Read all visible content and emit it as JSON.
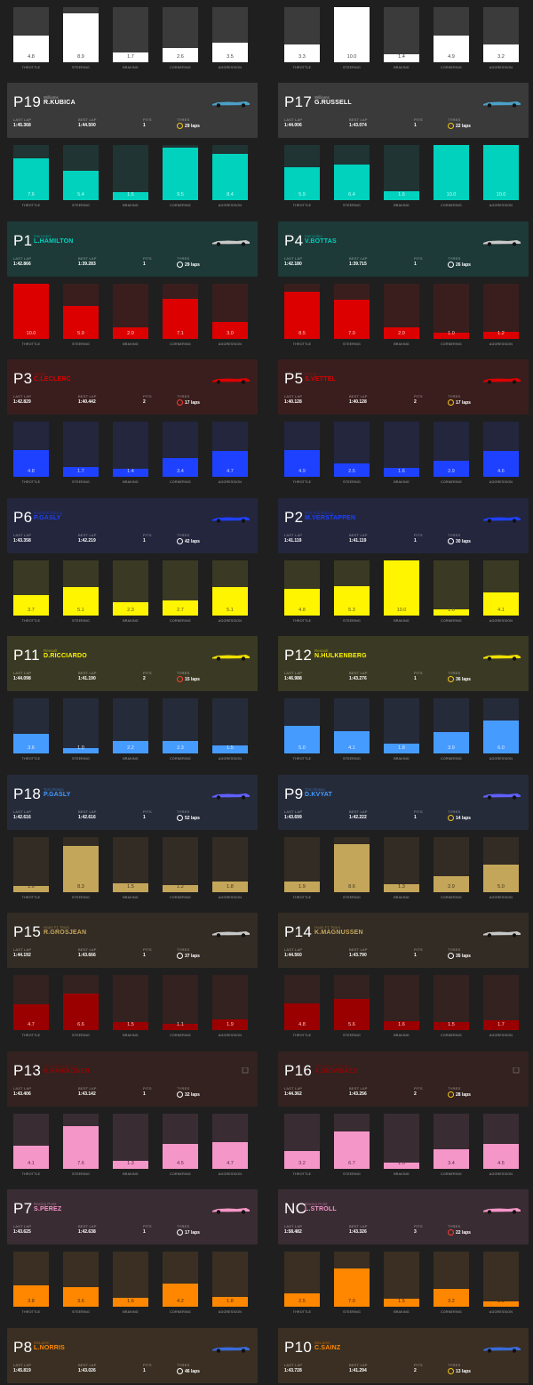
{
  "bar_labels": [
    "THROTTLE",
    "STEERING",
    "BRAKING",
    "CORNERING",
    "AGGRESSION"
  ],
  "card_labels": {
    "last_lap": "LAST LAP",
    "best_lap": "BEST LAP",
    "pits": "PITS",
    "tyres": "TYRES"
  },
  "top_bars": [
    {
      "values": [
        4.8,
        8.9,
        1.7,
        2.6,
        3.5
      ],
      "labels": [
        "4.8",
        "8.9",
        "1.7",
        "2.6",
        "3.5"
      ],
      "bg": "#3b3b3b",
      "fill": "#ffffff",
      "text": "#444444"
    },
    {
      "values": [
        3.3,
        10.0,
        1.4,
        4.9,
        3.2
      ],
      "labels": [
        "3.3",
        "10.0",
        "1.4",
        "4.9",
        "3.2"
      ],
      "bg": "#3b3b3b",
      "fill": "#ffffff",
      "text": "#444444"
    }
  ],
  "teams": [
    {
      "card_bg": "#3a3a3a",
      "name_color": "#ffffff",
      "car_color": "#4aa0c8",
      "bar_bg": "#1f3433",
      "bar_fill": "#00d2be",
      "bar_text": "#c0fff8",
      "drivers": [
        {
          "pos": "P19",
          "team": "Williams",
          "name": "R.KUBICA",
          "last_lap": "1:45.368",
          "best_lap": "1:44.500",
          "pits": "1",
          "tyre": "medium",
          "tyre_color": "#f5c518",
          "laps": "29 laps",
          "values": [
            7.6,
            5.4,
            1.5,
            9.5,
            8.4
          ],
          "labels": [
            "7.6",
            "5.4",
            "1.5",
            "9.5",
            "8.4"
          ]
        },
        {
          "pos": "P17",
          "team": "Williams",
          "name": "G.RUSSELL",
          "last_lap": "1:44.006",
          "best_lap": "1:43.074",
          "pits": "1",
          "tyre": "medium",
          "tyre_color": "#f5c518",
          "laps": "22 laps",
          "values": [
            5.9,
            6.4,
            1.6,
            10.0,
            10.0
          ],
          "labels": [
            "5.9",
            "6.4",
            "1.6",
            "10.0",
            "10.0"
          ]
        }
      ]
    },
    {
      "card_bg": "#1d3a38",
      "name_color": "#00d2be",
      "car_color": "#c9c9c9",
      "bar_bg": "#3a1e1e",
      "bar_fill": "#dc0000",
      "bar_text": "#ffd0d0",
      "drivers": [
        {
          "pos": "P1",
          "team": "Mercedes",
          "name": "L.HAMILTON",
          "last_lap": "1:42.866",
          "best_lap": "1:39.283",
          "pits": "1",
          "tyre": "hard",
          "tyre_color": "#ffffff",
          "laps": "29 laps",
          "values": [
            10.0,
            5.9,
            2.0,
            7.1,
            3.0
          ],
          "labels": [
            "10.0",
            "5.9",
            "2.0",
            "7.1",
            "3.0"
          ]
        },
        {
          "pos": "P4",
          "team": "Mercedes",
          "name": "V.BOTTAS",
          "last_lap": "1:42.180",
          "best_lap": "1:39.715",
          "pits": "1",
          "tyre": "hard",
          "tyre_color": "#ffffff",
          "laps": "26 laps",
          "values": [
            8.5,
            7.0,
            2.0,
            1.0,
            1.2
          ],
          "labels": [
            "8.5",
            "7.0",
            "2.0",
            "1.0",
            "1.2"
          ]
        }
      ]
    },
    {
      "card_bg": "#3a1e1e",
      "name_color": "#dc0000",
      "car_color": "#dc0000",
      "bar_bg": "#23263d",
      "bar_fill": "#1e41ff",
      "bar_text": "#d0d8ff",
      "drivers": [
        {
          "pos": "P3",
          "team": "Ferrari",
          "name": "C.LECLERC",
          "last_lap": "1:42.829",
          "best_lap": "1:40.442",
          "pits": "2",
          "tyre": "soft",
          "tyre_color": "#ff3b30",
          "laps": "17 laps",
          "values": [
            4.8,
            1.7,
            1.4,
            3.4,
            4.7
          ],
          "labels": [
            "4.8",
            "1.7",
            "1.4",
            "3.4",
            "4.7"
          ]
        },
        {
          "pos": "P5",
          "team": "Ferrari",
          "name": "S.VETTEL",
          "last_lap": "1:40.128",
          "best_lap": "1:40.128",
          "pits": "2",
          "tyre": "medium",
          "tyre_color": "#f5c518",
          "laps": "17 laps",
          "values": [
            4.9,
            2.5,
            1.6,
            2.9,
            4.6
          ],
          "labels": [
            "4.9",
            "2.5",
            "1.6",
            "2.9",
            "4.6"
          ]
        }
      ]
    },
    {
      "card_bg": "#23263d",
      "name_color": "#1e41ff",
      "car_color": "#1e41ff",
      "bar_bg": "#3a3a24",
      "bar_fill": "#fff500",
      "bar_text": "#5a5a20",
      "drivers": [
        {
          "pos": "P6",
          "team": "Red Bull Racing",
          "name": "P.GASLY",
          "last_lap": "1:43.358",
          "best_lap": "1:42.219",
          "pits": "1",
          "tyre": "hard",
          "tyre_color": "#ffffff",
          "laps": "42 laps",
          "values": [
            3.7,
            5.1,
            2.3,
            2.7,
            5.1
          ],
          "labels": [
            "3.7",
            "5.1",
            "2.3",
            "2.7",
            "5.1"
          ]
        },
        {
          "pos": "P2",
          "team": "Red Bull Racing",
          "name": "M.VERSTAPPEN",
          "last_lap": "1:41.119",
          "best_lap": "1:41.119",
          "pits": "1",
          "tyre": "hard",
          "tyre_color": "#ffffff",
          "laps": "30 laps",
          "values": [
            4.8,
            5.3,
            10.0,
            1.0,
            4.1
          ],
          "labels": [
            "4.8",
            "5.3",
            "10.0",
            "1.0",
            "4.1"
          ]
        }
      ]
    },
    {
      "card_bg": "#3a3a24",
      "name_color": "#fff500",
      "car_color": "#f0e000",
      "bar_bg": "#262b3a",
      "bar_fill": "#469bff",
      "bar_text": "#e0ecff",
      "drivers": [
        {
          "pos": "P11",
          "team": "Renault",
          "name": "D.RICCIARDO",
          "last_lap": "1:44.098",
          "best_lap": "1:41.190",
          "pits": "2",
          "tyre": "soft",
          "tyre_color": "#ff3b30",
          "laps": "15 laps",
          "values": [
            3.6,
            1.0,
            2.2,
            2.3,
            1.5
          ],
          "labels": [
            "3.6",
            "1.0",
            "2.2",
            "2.3",
            "1.5"
          ]
        },
        {
          "pos": "P12",
          "team": "Renault",
          "name": "N.HULKENBERG",
          "last_lap": "1:46.988",
          "best_lap": "1:43.276",
          "pits": "1",
          "tyre": "medium",
          "tyre_color": "#f5c518",
          "laps": "36 laps",
          "values": [
            5.0,
            4.1,
            1.8,
            3.9,
            6.0
          ],
          "labels": [
            "5.0",
            "4.1",
            "1.8",
            "3.9",
            "6.0"
          ]
        }
      ]
    },
    {
      "card_bg": "#262b3a",
      "name_color": "#469bff",
      "car_color": "#6060ff",
      "bar_bg": "#332c24",
      "bar_fill": "#c4a65a",
      "bar_text": "#3a3020",
      "drivers": [
        {
          "pos": "P18",
          "team": "Toro Rosso",
          "name": "P.GASLY",
          "last_lap": "1:42.616",
          "best_lap": "1:42.616",
          "pits": "1",
          "tyre": "hard",
          "tyre_color": "#ffffff",
          "laps": "52 laps",
          "values": [
            1.0,
            8.3,
            1.5,
            1.2,
            1.8
          ],
          "labels": [
            "1.0",
            "8.3",
            "1.5",
            "1.2",
            "1.8"
          ]
        },
        {
          "pos": "P9",
          "team": "Toro Rosso",
          "name": "D.KVYAT",
          "last_lap": "1:43.699",
          "best_lap": "1:42.222",
          "pits": "1",
          "tyre": "medium",
          "tyre_color": "#f5c518",
          "laps": "14 laps",
          "values": [
            1.9,
            8.6,
            1.3,
            2.9,
            5.0
          ],
          "labels": [
            "1.9",
            "8.6",
            "1.3",
            "2.9",
            "5.0"
          ]
        }
      ]
    },
    {
      "card_bg": "#332c24",
      "name_color": "#c4a65a",
      "car_color": "#c8c8c8",
      "bar_bg": "#33221f",
      "bar_fill": "#9b0000",
      "bar_text": "#ffcccc",
      "drivers": [
        {
          "pos": "P15",
          "team": "Haas F1 Team",
          "name": "R.GROSJEAN",
          "last_lap": "1:44.192",
          "best_lap": "1:43.666",
          "pits": "1",
          "tyre": "hard",
          "tyre_color": "#ffffff",
          "laps": "37 laps",
          "values": [
            4.7,
            6.6,
            1.5,
            1.1,
            1.9
          ],
          "labels": [
            "4.7",
            "6.6",
            "1.5",
            "1.1",
            "1.9"
          ]
        },
        {
          "pos": "P14",
          "team": "Haas F1 Team",
          "name": "K.MAGNUSSEN",
          "last_lap": "1:44.560",
          "best_lap": "1:43.790",
          "pits": "1",
          "tyre": "hard",
          "tyre_color": "#ffffff",
          "laps": "35 laps",
          "values": [
            4.8,
            5.6,
            1.6,
            1.5,
            1.7
          ],
          "labels": [
            "4.8",
            "5.6",
            "1.6",
            "1.5",
            "1.7"
          ]
        }
      ]
    },
    {
      "card_bg": "#33221f",
      "name_color": "#9b0000",
      "car_color": "",
      "bar_bg": "#3a2c33",
      "bar_fill": "#f596c8",
      "bar_text": "#5a2a40",
      "drivers": [
        {
          "pos": "P13",
          "team": "Alfa Romeo Racing",
          "name": "K.RAIKKONEN",
          "last_lap": "1:43.406",
          "best_lap": "1:43.142",
          "pits": "1",
          "tyre": "hard",
          "tyre_color": "#ffffff",
          "laps": "32 laps",
          "values": [
            4.1,
            7.6,
            1.3,
            4.5,
            4.7
          ],
          "labels": [
            "4.1",
            "7.6",
            "1.3",
            "4.5",
            "4.7"
          ]
        },
        {
          "pos": "P16",
          "team": "Alfa Romeo Racing",
          "name": "A.GIOVINAZZI",
          "last_lap": "1:44.362",
          "best_lap": "1:43.256",
          "pits": "2",
          "tyre": "medium",
          "tyre_color": "#f5c518",
          "laps": "28 laps",
          "values": [
            3.2,
            6.7,
            1.0,
            3.4,
            4.5
          ],
          "labels": [
            "3.2",
            "6.7",
            "1.0",
            "3.4",
            "4.5"
          ]
        }
      ]
    },
    {
      "card_bg": "#3a2c33",
      "name_color": "#f596c8",
      "car_color": "#f596c8",
      "bar_bg": "#3a2f22",
      "bar_fill": "#ff8700",
      "bar_text": "#4a2a00",
      "drivers": [
        {
          "pos": "P7",
          "team": "Racing Point",
          "name": "S.PEREZ",
          "last_lap": "1:43.625",
          "best_lap": "1:42.638",
          "pits": "1",
          "tyre": "hard",
          "tyre_color": "#ffffff",
          "laps": "17 laps",
          "values": [
            3.8,
            3.6,
            1.6,
            4.2,
            1.8
          ],
          "labels": [
            "3.8",
            "3.6",
            "1.6",
            "4.2",
            "1.8"
          ]
        },
        {
          "pos": "NC",
          "team": "Racing Point",
          "name": "L.STROLL",
          "last_lap": "1:58.482",
          "best_lap": "1:43.326",
          "pits": "3",
          "tyre": "soft",
          "tyre_color": "#ff3b30",
          "laps": "22 laps",
          "values": [
            2.5,
            7.0,
            1.5,
            3.2,
            1.0
          ],
          "labels": [
            "2.5",
            "7.0",
            "1.5",
            "3.2",
            "1.0"
          ]
        }
      ]
    },
    {
      "card_bg": "#3a2f22",
      "name_color": "#ff8700",
      "car_color": "#3a6ad8",
      "bar_bg": "",
      "bar_fill": "",
      "bar_text": "",
      "drivers": [
        {
          "pos": "P8",
          "team": "McLaren",
          "name": "L.NORRIS",
          "last_lap": "1:45.819",
          "best_lap": "1:43.026",
          "pits": "1",
          "tyre": "hard",
          "tyre_color": "#ffffff",
          "laps": "46 laps",
          "values": [],
          "labels": []
        },
        {
          "pos": "P10",
          "team": "McLaren",
          "name": "C.SAINZ",
          "last_lap": "1:43.728",
          "best_lap": "1:41.294",
          "pits": "2",
          "tyre": "medium",
          "tyre_color": "#f5c518",
          "laps": "13 laps",
          "values": [],
          "labels": []
        }
      ]
    }
  ]
}
